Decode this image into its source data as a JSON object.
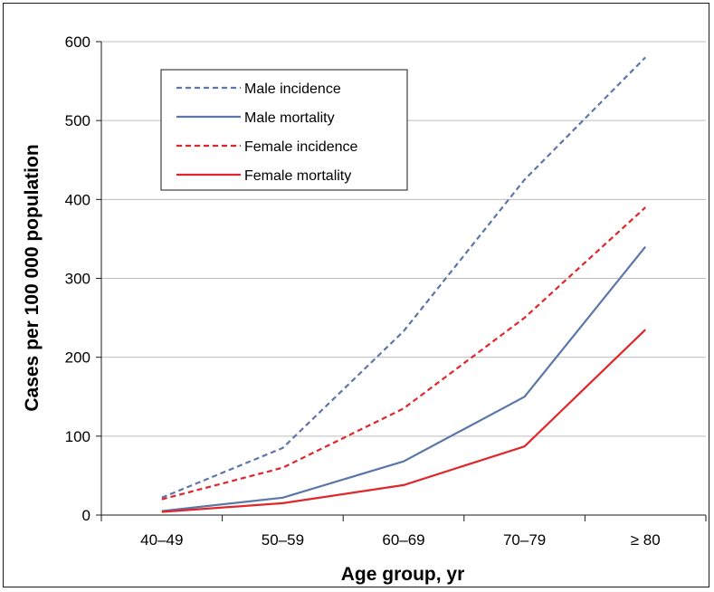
{
  "chart_data": {
    "type": "line",
    "title": "",
    "xlabel": "Age group, yr",
    "ylabel": "Cases per 100 000 population",
    "categories": [
      "40–49",
      "50–59",
      "60–69",
      "70–79",
      "≥ 80"
    ],
    "ylim": [
      0,
      600
    ],
    "yticks": [
      0,
      100,
      200,
      300,
      400,
      500,
      600
    ],
    "grid": true,
    "legend_position": "top-left",
    "series": [
      {
        "name": "Male incidence",
        "values": [
          22,
          85,
          233,
          425,
          580
        ],
        "color": "#5b76a8",
        "dashed": true
      },
      {
        "name": "Male mortality",
        "values": [
          5,
          22,
          68,
          150,
          340
        ],
        "color": "#5b76a8",
        "dashed": false
      },
      {
        "name": "Female incidence",
        "values": [
          20,
          60,
          135,
          250,
          390
        ],
        "color": "#e0262b",
        "dashed": true
      },
      {
        "name": "Female mortality",
        "values": [
          4,
          15,
          38,
          87,
          235
        ],
        "color": "#e0262b",
        "dashed": false
      }
    ]
  }
}
